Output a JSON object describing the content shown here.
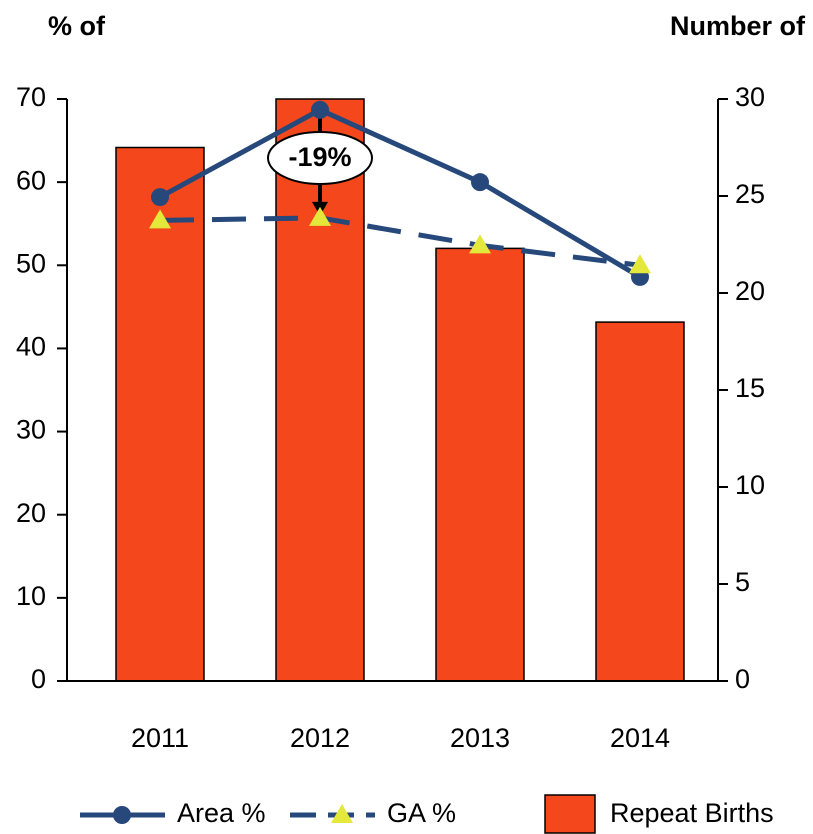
{
  "chart_data": {
    "type": "bar_line",
    "y_label": "% of",
    "y2_label": "Number of",
    "categories": [
      "2011",
      "2012",
      "2013",
      "2014"
    ],
    "series": [
      {
        "name": "Repeat Births",
        "type": "bar",
        "axis": "y2",
        "color": "#f4471b",
        "values": [
          27.5,
          30,
          22.3,
          18.5
        ]
      },
      {
        "name": "Area %",
        "type": "line",
        "axis": "y",
        "color": "#26487a",
        "marker": "circle",
        "dash": false,
        "values": [
          58.2,
          68.7,
          60.0,
          48.6
        ]
      },
      {
        "name": "GA %",
        "type": "line",
        "axis": "y",
        "color": "#26487a",
        "marker": "triangle",
        "marker_color": "#e4e83a",
        "dash": true,
        "values": [
          55.4,
          55.7,
          52.4,
          50.0
        ]
      }
    ],
    "annotation": "-19%",
    "ylim": [
      0,
      70
    ],
    "yticks": [
      0,
      10,
      20,
      30,
      40,
      50,
      60,
      70
    ],
    "y2lim": [
      0,
      30
    ],
    "y2ticks": [
      0,
      5,
      10,
      15,
      20,
      25,
      30
    ],
    "legend": "bottom"
  }
}
